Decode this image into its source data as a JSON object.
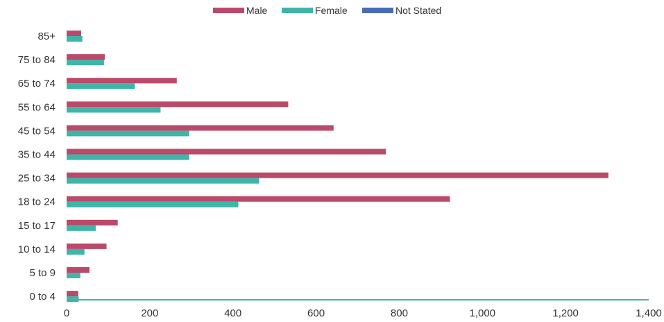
{
  "chart_data": {
    "type": "bar",
    "orientation": "horizontal",
    "categories": [
      "85+",
      "75 to 84",
      "65 to 74",
      "55 to 64",
      "45 to 54",
      "35 to 44",
      "25 to 34",
      "18 to 24",
      "15 to 17",
      "10 to 14",
      "5 to 9",
      "0 to 4"
    ],
    "series": [
      {
        "name": "Male",
        "color": "#bb4a6a",
        "values": [
          35,
          92,
          265,
          533,
          642,
          768,
          1303,
          922,
          123,
          96,
          55,
          28
        ]
      },
      {
        "name": "Female",
        "color": "#3fb5a9",
        "values": [
          38,
          90,
          164,
          226,
          295,
          295,
          463,
          413,
          70,
          43,
          33,
          29
        ]
      },
      {
        "name": "Not Stated",
        "color": "#4a6cb8",
        "values": [
          0,
          0,
          0,
          0,
          0,
          0,
          0,
          0,
          0,
          0,
          0,
          0
        ]
      }
    ],
    "x_ticks": [
      "0",
      "200",
      "400",
      "600",
      "800",
      "1,000",
      "1,200",
      "1,400"
    ],
    "xlim": [
      0,
      1400
    ],
    "grid": false,
    "legend_position": "top-center",
    "axis_color": "#3fb5a9"
  }
}
